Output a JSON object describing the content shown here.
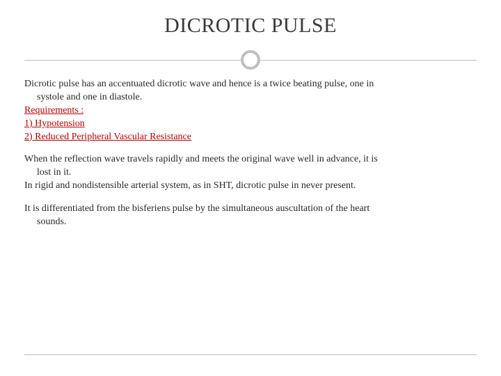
{
  "title": "DICROTIC PULSE",
  "block1": {
    "line1": "Dicrotic pulse has an accentuated dicrotic wave and hence is a twice beating pulse, one in",
    "line1b": "systole and one in diastole.",
    "req_label": "Requirements :",
    "req1": "1) Hypotension",
    "req2": "2) Reduced Peripheral  Vascular Resistance"
  },
  "block2": {
    "line1": "When the reflection wave travels rapidly and meets the original wave well in advance, it is",
    "line1b": "lost in it.",
    "line2": "In rigid and nondistensible arterial system, as in SHT, dicrotic pulse in never present."
  },
  "block3": {
    "line1": "It is differentiated from the bisferiens pulse by the simultaneous auscultation of the heart",
    "line1b": "sounds."
  },
  "colors": {
    "text": "#2a2a2a",
    "title": "#3a3a3a",
    "accent_red": "#c00000",
    "divider": "#bfbfbf",
    "background": "#ffffff"
  },
  "typography": {
    "title_fontsize": 30,
    "body_fontsize": 14,
    "font_family": "Georgia / serif"
  }
}
